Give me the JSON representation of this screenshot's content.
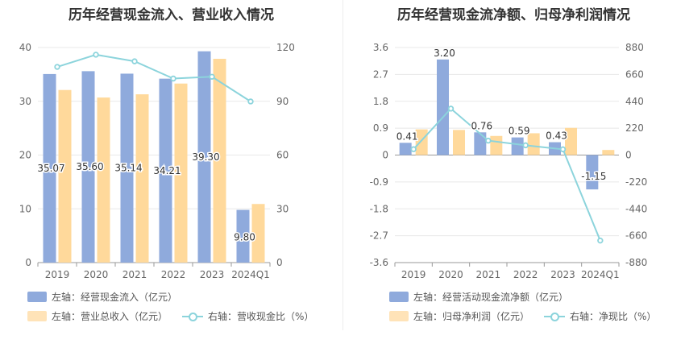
{
  "colors": {
    "bar1": "#8faadc",
    "bar2": "#ffd99b",
    "line": "#8cd4dc",
    "label_fill": "#333333",
    "grid": "#e8e8e8",
    "axis_text": "#666666"
  },
  "chart_data": [
    {
      "type": "bar",
      "title": "历年经营现金流入、营业收入情况",
      "categories": [
        "2019",
        "2020",
        "2021",
        "2022",
        "2023",
        "2024Q1"
      ],
      "y_left": {
        "range": [
          0,
          40
        ],
        "ticks": [
          "0",
          "10",
          "20",
          "30",
          "40"
        ]
      },
      "y_right": {
        "range": [
          0,
          120
        ],
        "ticks": [
          "0",
          "30",
          "60",
          "90",
          "120"
        ]
      },
      "series": [
        {
          "name": "左轴：经营现金流入（亿元）",
          "kind": "bar",
          "axis": "left",
          "values": [
            35.07,
            35.6,
            35.14,
            34.21,
            39.3,
            9.8
          ],
          "labels": [
            "35.07",
            "35.60",
            "35.14",
            "34.21",
            "39.30",
            "9.80"
          ]
        },
        {
          "name": "左轴：营业总收入（亿元）",
          "kind": "bar",
          "axis": "left",
          "values": [
            32.1,
            30.7,
            31.3,
            33.3,
            37.9,
            10.9
          ]
        },
        {
          "name": "右轴：营收现金比（%）",
          "kind": "line",
          "axis": "right",
          "values": [
            109.2,
            116.0,
            112.3,
            102.7,
            103.7,
            89.9
          ]
        }
      ],
      "legend": "bottom"
    },
    {
      "type": "bar",
      "title": "历年经营现金流净额、归母净利润情况",
      "categories": [
        "2019",
        "2020",
        "2021",
        "2022",
        "2023",
        "2024Q1"
      ],
      "y_left": {
        "range": [
          -3.6,
          3.6
        ],
        "ticks": [
          "-3.6",
          "-2.7",
          "-1.8",
          "-0.9",
          "0",
          "0.9",
          "1.8",
          "2.7",
          "3.6"
        ]
      },
      "y_right": {
        "range": [
          -880,
          880
        ],
        "ticks": [
          "-880",
          "-660",
          "-440",
          "-220",
          "0",
          "220",
          "440",
          "660",
          "880"
        ]
      },
      "series": [
        {
          "name": "左轴：经营活动现金流净额（亿元）",
          "kind": "bar",
          "axis": "left",
          "values": [
            0.41,
            3.2,
            0.76,
            0.59,
            0.43,
            -1.15
          ],
          "labels": [
            "0.41",
            "3.20",
            "0.76",
            "0.59",
            "0.43",
            "-1.15"
          ]
        },
        {
          "name": "左轴：归母净利润（亿元）",
          "kind": "bar",
          "axis": "left",
          "values": [
            0.86,
            0.84,
            0.64,
            0.73,
            0.91,
            0.17
          ]
        },
        {
          "name": "右轴：净现比（%）",
          "kind": "line",
          "axis": "right",
          "values": [
            48,
            380,
            118,
            80,
            47,
            -700
          ]
        }
      ],
      "legend": "bottom"
    }
  ]
}
